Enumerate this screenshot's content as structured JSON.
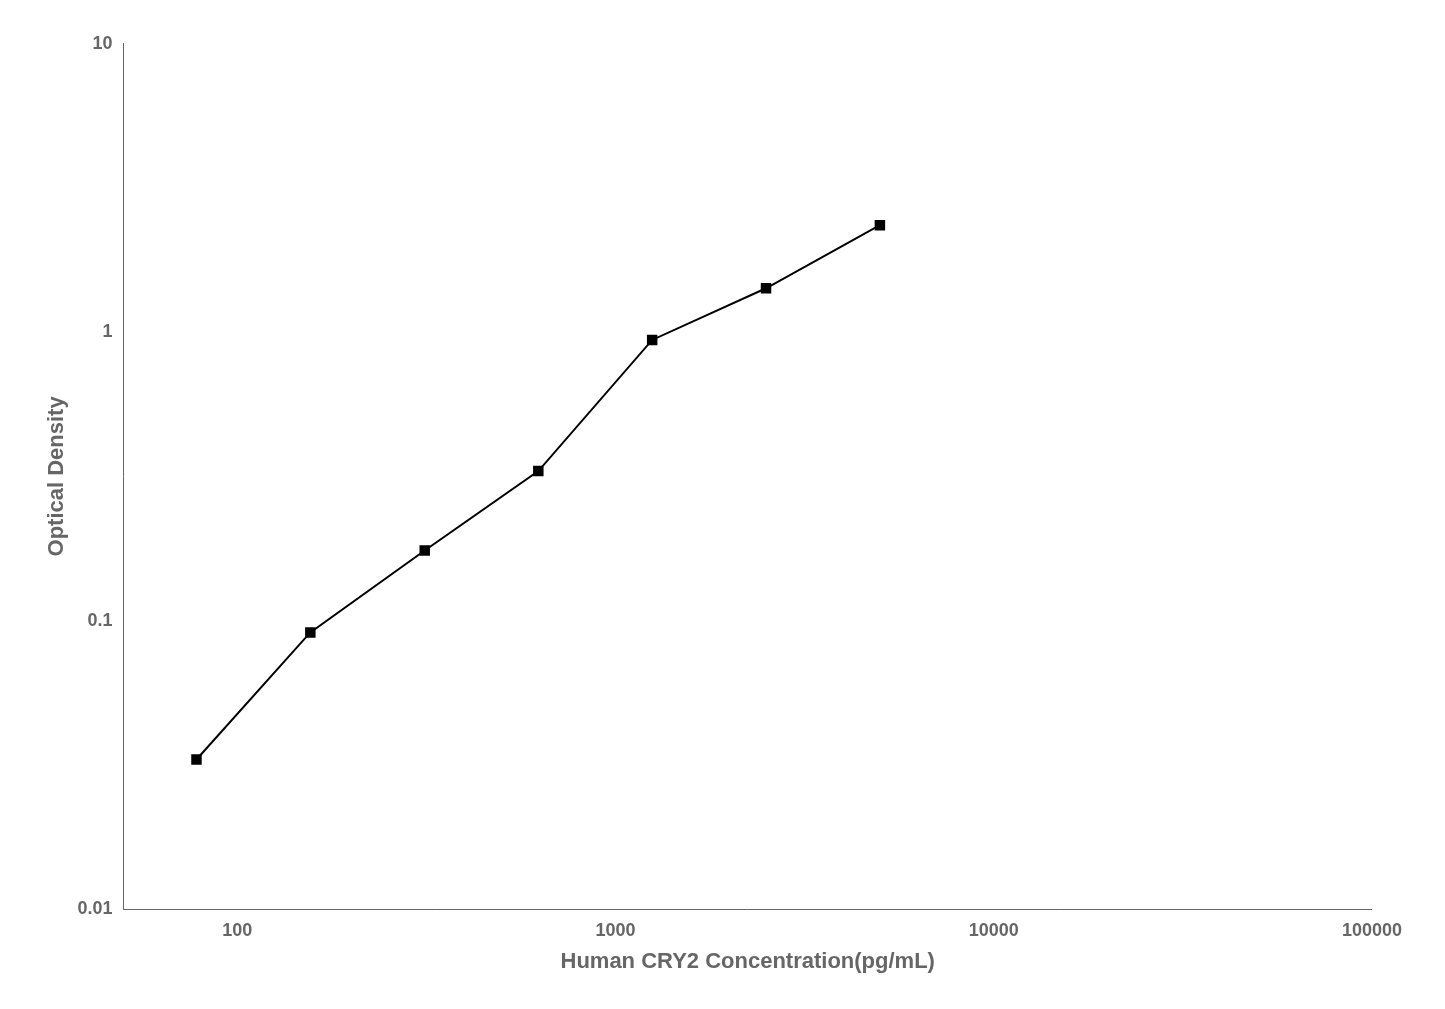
{
  "chart_data": {
    "type": "line",
    "xlabel": "Human CRY2 Concentration(pg/mL)",
    "ylabel": "Optical Density",
    "x": [
      78,
      156,
      313,
      625,
      1250,
      2500,
      5000
    ],
    "values": [
      0.033,
      0.091,
      0.175,
      0.33,
      0.94,
      1.42,
      2.35
    ],
    "xlim": [
      50,
      100000
    ],
    "ylim": [
      0.01,
      10
    ],
    "xticks": [
      100,
      1000,
      10000,
      100000
    ],
    "yticks": [
      0.01,
      0.1,
      1,
      10
    ],
    "log": true,
    "grid": false,
    "color": "#000000",
    "marker": "square"
  }
}
